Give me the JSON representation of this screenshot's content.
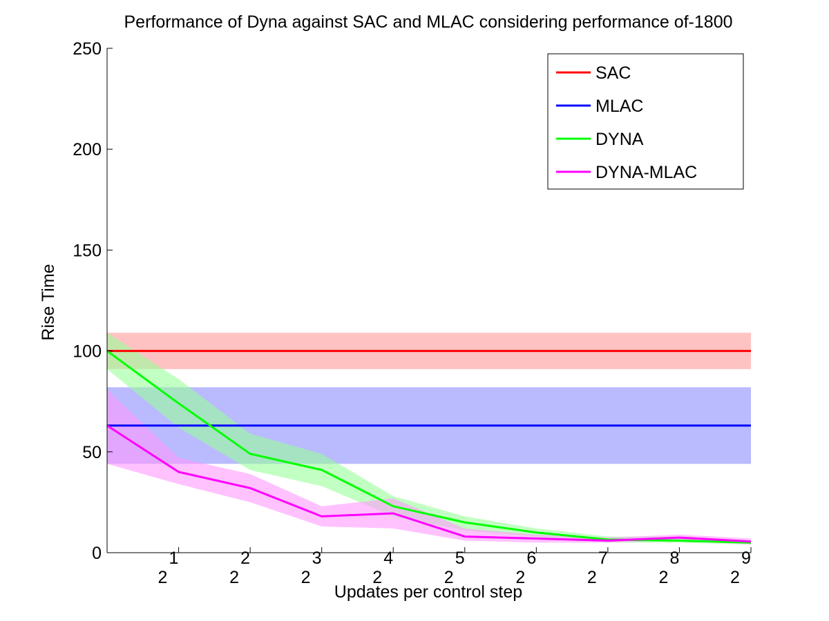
{
  "chart_data": {
    "type": "line",
    "title": "Performance of Dyna against SAC and MLAC considering performance of-1800",
    "xlabel": "Updates per control step",
    "ylabel": "Rise Time",
    "ylim": [
      0,
      250
    ],
    "y_ticks": [
      0,
      50,
      100,
      150,
      200,
      250
    ],
    "x_range": [
      0,
      9
    ],
    "x_ticks": [
      {
        "x": 1,
        "base": "2",
        "exp": "1"
      },
      {
        "x": 2,
        "base": "2",
        "exp": "2"
      },
      {
        "x": 3,
        "base": "2",
        "exp": "3"
      },
      {
        "x": 4,
        "base": "2",
        "exp": "4"
      },
      {
        "x": 5,
        "base": "2",
        "exp": "5"
      },
      {
        "x": 6,
        "base": "2",
        "exp": "6"
      },
      {
        "x": 7,
        "base": "2",
        "exp": "7"
      },
      {
        "x": 8,
        "base": "2",
        "exp": "8"
      },
      {
        "x": 9,
        "base": "2",
        "exp": "9"
      }
    ],
    "grid": false,
    "legend_position": "top-right",
    "series": [
      {
        "name": "SAC",
        "color": "#ff0000",
        "band_color": "#ff9999",
        "x": [
          0,
          9
        ],
        "y": [
          100,
          100
        ],
        "upper": [
          109,
          109
        ],
        "lower": [
          91,
          91
        ]
      },
      {
        "name": "MLAC",
        "color": "#0000ff",
        "band_color": "#8c8cff",
        "x": [
          0,
          9
        ],
        "y": [
          63,
          63
        ],
        "upper": [
          82,
          82
        ],
        "lower": [
          44,
          44
        ]
      },
      {
        "name": "DYNA",
        "color": "#00ff00",
        "band_color": "#99ff99",
        "x": [
          0,
          1,
          2,
          3,
          4,
          5,
          6,
          7,
          8,
          9
        ],
        "y": [
          100,
          74,
          49,
          41,
          23,
          15,
          10,
          6.5,
          6,
          5
        ],
        "upper": [
          109,
          86,
          59,
          49,
          28,
          18,
          12,
          8,
          8,
          6
        ],
        "lower": [
          91,
          62,
          41,
          33,
          18,
          11,
          8,
          5,
          5,
          4
        ]
      },
      {
        "name": "DYNA-MLAC",
        "color": "#ff00ff",
        "band_color": "#ff99ff",
        "x": [
          0,
          1,
          2,
          3,
          4,
          5,
          6,
          7,
          8,
          9
        ],
        "y": [
          63,
          40,
          32,
          18,
          19.5,
          8,
          7,
          6,
          7.5,
          5.5
        ],
        "upper": [
          81,
          47,
          39,
          23,
          27,
          12,
          9,
          7.5,
          9,
          7
        ],
        "lower": [
          44,
          34,
          25,
          13,
          12,
          6,
          5,
          5,
          6,
          4
        ]
      }
    ]
  }
}
